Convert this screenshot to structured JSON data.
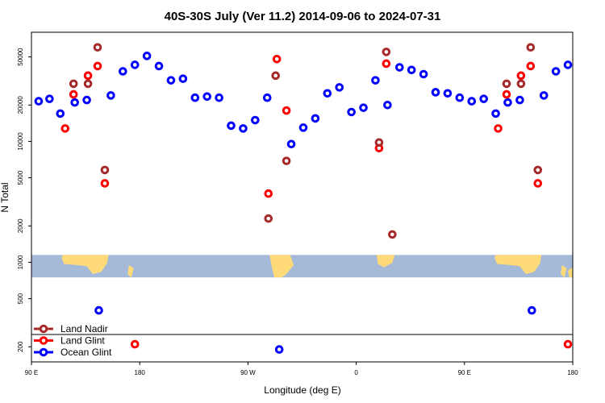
{
  "chart_data": {
    "type": "scatter",
    "title": "40S-30S July (Ver 11.2)   2014-09-06 to 2024-07-31",
    "xlabel": "Longitude (deg E)",
    "ylabel": "N Total",
    "x_scale": "longitude, wraps from 90 E through 180 and 0 to 180",
    "y_scale": "log",
    "xlim": [
      90,
      540
    ],
    "ylim": [
      150,
      80000
    ],
    "x_ticks": [
      {
        "value": 90,
        "label": "90 E"
      },
      {
        "value": 180,
        "label": "180"
      },
      {
        "value": 270,
        "label": "90 W"
      },
      {
        "value": 360,
        "label": "0"
      },
      {
        "value": 450,
        "label": "90 E"
      },
      {
        "value": 540,
        "label": "180"
      }
    ],
    "y_ticks": [
      {
        "value": 200,
        "label": "200"
      },
      {
        "value": 500,
        "label": "500"
      },
      {
        "value": 1000,
        "label": "1000"
      },
      {
        "value": 2000,
        "label": "2000"
      },
      {
        "value": 5000,
        "label": "5000"
      },
      {
        "value": 10000,
        "label": "10000"
      },
      {
        "value": 20000,
        "label": "20000"
      },
      {
        "value": 50000,
        "label": "50000"
      }
    ],
    "legend": {
      "placement": "bottom-left"
    },
    "map_strip": {
      "ocean_color": "#a5b9d8",
      "land_color": "#ffda78",
      "y_range": [
        750,
        1150
      ]
    },
    "series": [
      {
        "name": "Land Nadir",
        "color": "#a52a2a",
        "points": [
          {
            "x": 125,
            "y": 30000
          },
          {
            "x": 137,
            "y": 30000
          },
          {
            "x": 145,
            "y": 60000
          },
          {
            "x": 151,
            "y": 5800
          },
          {
            "x": 287,
            "y": 2300
          },
          {
            "x": 293,
            "y": 35000
          },
          {
            "x": 302,
            "y": 6900
          },
          {
            "x": 379,
            "y": 9800
          },
          {
            "x": 385,
            "y": 55000
          },
          {
            "x": 390,
            "y": 1700
          },
          {
            "x": 485,
            "y": 30000
          },
          {
            "x": 497,
            "y": 30000
          },
          {
            "x": 505,
            "y": 60000
          },
          {
            "x": 511,
            "y": 5800
          }
        ]
      },
      {
        "name": "Land Glint",
        "color": "#ff0000",
        "points": [
          {
            "x": 118,
            "y": 12800
          },
          {
            "x": 125,
            "y": 24500
          },
          {
            "x": 137,
            "y": 35000
          },
          {
            "x": 145,
            "y": 42000
          },
          {
            "x": 151,
            "y": 4500
          },
          {
            "x": 176,
            "y": 210
          },
          {
            "x": 287,
            "y": 3700
          },
          {
            "x": 294,
            "y": 48000
          },
          {
            "x": 302,
            "y": 18000
          },
          {
            "x": 379,
            "y": 8800
          },
          {
            "x": 385,
            "y": 44000
          },
          {
            "x": 478,
            "y": 12800
          },
          {
            "x": 485,
            "y": 24500
          },
          {
            "x": 497,
            "y": 35000
          },
          {
            "x": 505,
            "y": 42000
          },
          {
            "x": 511,
            "y": 4500
          },
          {
            "x": 536,
            "y": 210
          }
        ]
      },
      {
        "name": "Ocean Glint",
        "color": "#0000ff",
        "points": [
          {
            "x": 96,
            "y": 21500
          },
          {
            "x": 105,
            "y": 22500
          },
          {
            "x": 114,
            "y": 17000
          },
          {
            "x": 126,
            "y": 21000
          },
          {
            "x": 136,
            "y": 22000
          },
          {
            "x": 146,
            "y": 400
          },
          {
            "x": 156,
            "y": 24000
          },
          {
            "x": 166,
            "y": 38000
          },
          {
            "x": 176,
            "y": 43000
          },
          {
            "x": 186,
            "y": 51000
          },
          {
            "x": 196,
            "y": 42000
          },
          {
            "x": 206,
            "y": 32000
          },
          {
            "x": 216,
            "y": 33000
          },
          {
            "x": 226,
            "y": 23000
          },
          {
            "x": 236,
            "y": 23500
          },
          {
            "x": 246,
            "y": 23000
          },
          {
            "x": 256,
            "y": 13500
          },
          {
            "x": 266,
            "y": 12800
          },
          {
            "x": 276,
            "y": 15000
          },
          {
            "x": 286,
            "y": 23000
          },
          {
            "x": 296,
            "y": 190
          },
          {
            "x": 306,
            "y": 9500
          },
          {
            "x": 316,
            "y": 13000
          },
          {
            "x": 326,
            "y": 15500
          },
          {
            "x": 336,
            "y": 25000
          },
          {
            "x": 346,
            "y": 28000
          },
          {
            "x": 356,
            "y": 17500
          },
          {
            "x": 366,
            "y": 19000
          },
          {
            "x": 376,
            "y": 32000
          },
          {
            "x": 386,
            "y": 20000
          },
          {
            "x": 396,
            "y": 41000
          },
          {
            "x": 406,
            "y": 39000
          },
          {
            "x": 416,
            "y": 36000
          },
          {
            "x": 426,
            "y": 25500
          },
          {
            "x": 436,
            "y": 25000
          },
          {
            "x": 446,
            "y": 23000
          },
          {
            "x": 456,
            "y": 21500
          },
          {
            "x": 466,
            "y": 22500
          },
          {
            "x": 476,
            "y": 17000
          },
          {
            "x": 486,
            "y": 21000
          },
          {
            "x": 496,
            "y": 22000
          },
          {
            "x": 506,
            "y": 400
          },
          {
            "x": 516,
            "y": 24000
          },
          {
            "x": 526,
            "y": 38000
          },
          {
            "x": 536,
            "y": 43000
          }
        ]
      }
    ]
  }
}
